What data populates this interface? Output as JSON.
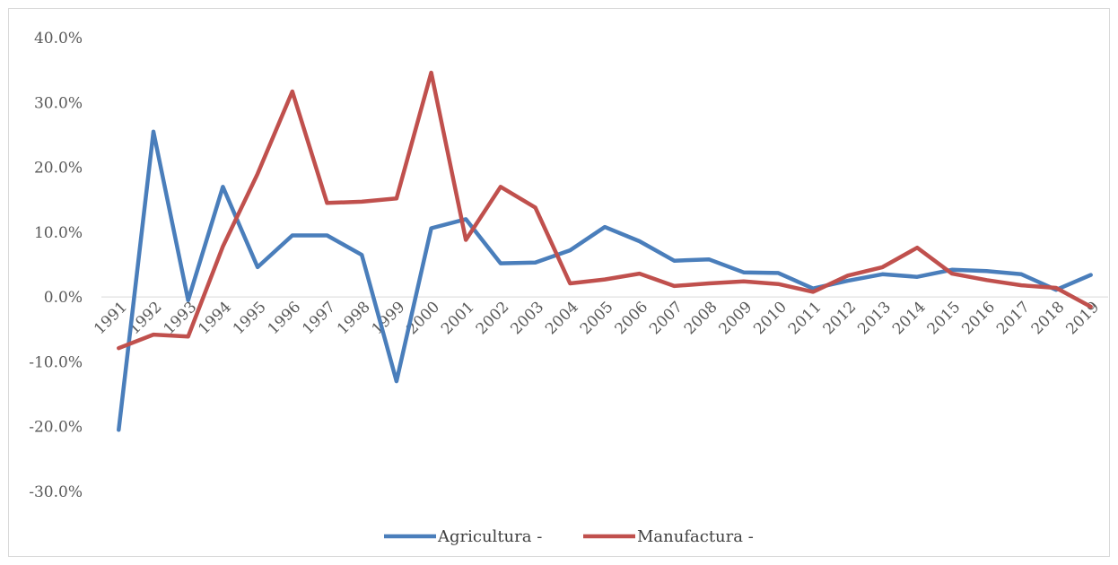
{
  "chart_data": {
    "type": "line",
    "title": "",
    "xlabel": "",
    "ylabel": "",
    "x": [
      "1991",
      "1992",
      "1993",
      "1994",
      "1995",
      "1996",
      "1997",
      "1998",
      "1999",
      "2000",
      "2001",
      "2002",
      "2003",
      "2004",
      "2005",
      "2006",
      "2007",
      "2008",
      "2009",
      "2010",
      "2011",
      "2012",
      "2013",
      "2014",
      "2015",
      "2016",
      "2017",
      "2018",
      "2019"
    ],
    "y_ticks": [
      "40.0%",
      "30.0%",
      "20.0%",
      "10.0%",
      "0.0%",
      "-10.0%",
      "-20.0%",
      "-30.0%"
    ],
    "ylim": [
      -30,
      40
    ],
    "grid": false,
    "legend_position": "bottom",
    "series": [
      {
        "name": "Agricultura -",
        "color": "#4a7ebb",
        "values": [
          -20.5,
          25.5,
          -0.5,
          17.0,
          4.6,
          9.5,
          9.5,
          6.5,
          -13.0,
          10.6,
          12.0,
          5.2,
          5.3,
          7.2,
          10.8,
          8.6,
          5.6,
          5.8,
          3.8,
          3.7,
          1.3,
          2.5,
          3.5,
          3.1,
          4.2,
          4.0,
          3.5,
          1.1,
          3.4
        ]
      },
      {
        "name": "Manufactura -",
        "color": "#c0504d",
        "values": [
          -7.9,
          -5.8,
          -6.1,
          7.8,
          19.0,
          31.7,
          14.5,
          14.7,
          15.2,
          34.6,
          8.8,
          17.0,
          13.8,
          2.1,
          2.7,
          3.6,
          1.7,
          2.1,
          2.4,
          2.0,
          0.8,
          3.3,
          4.6,
          7.6,
          3.6,
          2.6,
          1.8,
          1.4,
          -1.5
        ]
      }
    ]
  }
}
